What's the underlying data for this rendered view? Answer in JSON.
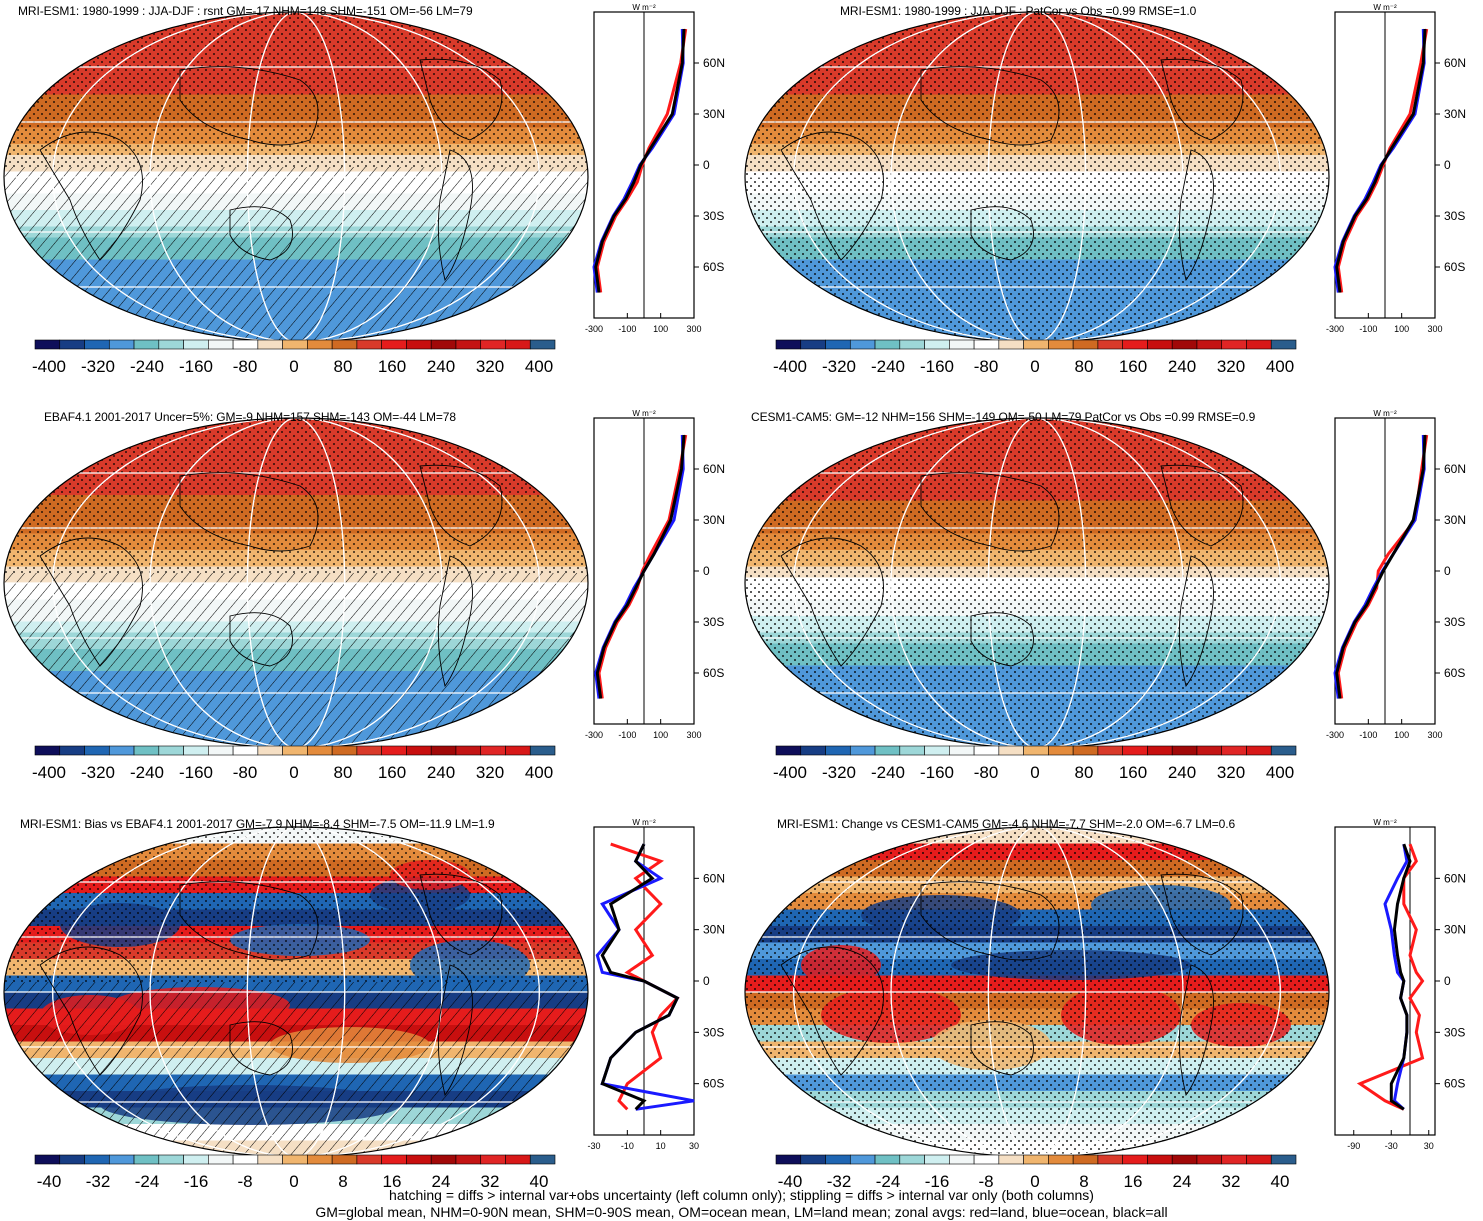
{
  "panels": [
    {
      "id": "p1",
      "title": "MRI-ESM1: 1980-1999 : JJA-DJF : rsnt GM=-17 NHM=148 SHM=-151 OM=-56 LM=79",
      "field": "clim",
      "overlay": "hatch",
      "colorbar": [
        "-400",
        "-320",
        "-240",
        "-160",
        "-80",
        "0",
        "80",
        "160",
        "240",
        "320",
        "400"
      ],
      "zonal_ticks": [
        "-300",
        "-100",
        "100",
        "300"
      ],
      "zonal_xlim": [
        -300,
        300
      ]
    },
    {
      "id": "p2",
      "title": "MRI-ESM1: 1980-1999 : JJA-DJF : PatCor vs Obs =0.99 RMSE=1.0",
      "field": "clim",
      "overlay": "stipple",
      "colorbar": [
        "-400",
        "-320",
        "-240",
        "-160",
        "-80",
        "0",
        "80",
        "160",
        "240",
        "320",
        "400"
      ],
      "zonal_ticks": [
        "-300",
        "-100",
        "100",
        "300"
      ],
      "zonal_xlim": [
        -300,
        300
      ]
    },
    {
      "id": "p3",
      "title": "EBAF4.1 2001-2017 Uncer=5%: GM=-9 NHM=157 SHM=-143 OM=-44 LM=78",
      "field": "clim",
      "overlay": "hatch",
      "colorbar": [
        "-400",
        "-320",
        "-240",
        "-160",
        "-80",
        "0",
        "80",
        "160",
        "240",
        "320",
        "400"
      ],
      "zonal_ticks": [
        "-300",
        "-100",
        "100",
        "300"
      ],
      "zonal_xlim": [
        -300,
        300
      ]
    },
    {
      "id": "p4",
      "title": "CESM1-CAM5: GM=-12 NHM=156 SHM=-149 OM=-50 LM=79 PatCor vs Obs =0.99 RMSE=0.9",
      "field": "clim",
      "overlay": "stipple",
      "colorbar": [
        "-400",
        "-320",
        "-240",
        "-160",
        "-80",
        "0",
        "80",
        "160",
        "240",
        "320",
        "400"
      ],
      "zonal_ticks": [
        "-300",
        "-100",
        "100",
        "300"
      ],
      "zonal_xlim": [
        -300,
        300
      ]
    },
    {
      "id": "p5",
      "title": "MRI-ESM1: Bias vs EBAF4.1 2001-2017 GM=-7.9 NHM=-8.4 SHM=-7.5 OM=-11.9 LM=1.9",
      "field": "bias",
      "overlay": "hatch",
      "colorbar": [
        "-40",
        "-32",
        "-24",
        "-16",
        "-8",
        "0",
        "8",
        "16",
        "24",
        "32",
        "40"
      ],
      "zonal_ticks": [
        "-30",
        "-10",
        "10",
        "30"
      ],
      "zonal_xlim": [
        -30,
        30
      ]
    },
    {
      "id": "p6",
      "title": "MRI-ESM1: Change vs CESM1-CAM5 GM=-4.6 NHM=-7.7 SHM=-2.0 OM=-6.7 LM=0.6",
      "field": "change",
      "overlay": "stipple",
      "colorbar": [
        "-40",
        "-32",
        "-24",
        "-16",
        "-8",
        "0",
        "8",
        "16",
        "24",
        "32",
        "40"
      ],
      "zonal_ticks": [
        "-90",
        "-30",
        "30"
      ],
      "zonal_xlim": [
        -120,
        40
      ]
    }
  ],
  "lat_labels": [
    "60N",
    "30N",
    "0",
    "30S",
    "60S"
  ],
  "unit": "W m⁻²",
  "colormap": [
    "#0e0e5a",
    "#173d84",
    "#1f66b3",
    "#4f98da",
    "#6fc0c4",
    "#9dd7d8",
    "#cfeff0",
    "#f2f7f7",
    "#ffffff",
    "#f5dfc4",
    "#f0b56e",
    "#e38b3c",
    "#cf6a22",
    "#d93a2a",
    "#e51c1c",
    "#c80f0f",
    "#a10808",
    "#c41414",
    "#e02525",
    "#d81818",
    "#2a5d8c"
  ],
  "footer": {
    "line1": "hatching = diffs > internal var+obs uncertainty (left column only); stippling = diffs > internal var only (both columns)",
    "line2": "GM=global mean, NHM=0-90N mean, SHM=0-90S mean, OM=ocean mean, LM=land mean; zonal avgs: red=land, blue=ocean, black=all"
  },
  "chart_data": [
    {
      "type": "heatmap",
      "title": "MRI-ESM1: 1980-1999 : JJA-DJF : rsnt GM=-17 NHM=148 SHM=-151 OM=-56 LM=79",
      "colorbar_range": [
        -400,
        400
      ],
      "zonal_mean": {
        "xlabel": "W m-2",
        "xlim": [
          -300,
          300
        ],
        "lat": [
          80,
          60,
          30,
          10,
          0,
          -10,
          -20,
          -30,
          -45,
          -60,
          -75
        ],
        "all": [
          240,
          230,
          170,
          40,
          -20,
          -60,
          -110,
          -180,
          -250,
          -290,
          -270
        ],
        "land": [
          250,
          220,
          140,
          30,
          -10,
          -40,
          -100,
          -170,
          -240,
          -280,
          -260
        ],
        "ocean": [
          230,
          235,
          180,
          50,
          -25,
          -70,
          -120,
          -185,
          -255,
          -300,
          -280
        ]
      }
    },
    {
      "type": "heatmap",
      "title": "MRI-ESM1: 1980-1999 : JJA-DJF : PatCor vs Obs =0.99 RMSE=1.0",
      "colorbar_range": [
        -400,
        400
      ],
      "zonal_mean": {
        "xlabel": "W m-2",
        "xlim": [
          -300,
          300
        ],
        "lat": [
          80,
          60,
          30,
          10,
          0,
          -10,
          -20,
          -30,
          -45,
          -60,
          -75
        ],
        "all": [
          240,
          230,
          170,
          40,
          -20,
          -60,
          -110,
          -180,
          -250,
          -290,
          -270
        ],
        "land": [
          250,
          215,
          150,
          30,
          -10,
          -50,
          -100,
          -170,
          -240,
          -280,
          -260
        ],
        "ocean": [
          230,
          235,
          180,
          50,
          -25,
          -70,
          -120,
          -185,
          -255,
          -300,
          -280
        ]
      }
    },
    {
      "type": "heatmap",
      "title": "EBAF4.1 2001-2017 Uncer=5%: GM=-9 NHM=157 SHM=-143 OM=-44 LM=78",
      "colorbar_range": [
        -400,
        400
      ],
      "zonal_mean": {
        "xlabel": "W m-2",
        "xlim": [
          -300,
          300
        ],
        "lat": [
          80,
          60,
          30,
          10,
          0,
          -10,
          -20,
          -30,
          -45,
          -60,
          -75
        ],
        "all": [
          240,
          225,
          160,
          60,
          0,
          -50,
          -100,
          -170,
          -240,
          -280,
          -260
        ],
        "land": [
          250,
          215,
          150,
          40,
          -10,
          -40,
          -90,
          -160,
          -230,
          -270,
          -250
        ],
        "ocean": [
          230,
          235,
          180,
          60,
          0,
          -60,
          -110,
          -175,
          -245,
          -290,
          -270
        ]
      }
    },
    {
      "type": "heatmap",
      "title": "CESM1-CAM5: GM=-12 NHM=156 SHM=-149 OM=-50 LM=79 PatCor vs Obs =0.99 RMSE=0.9",
      "colorbar_range": [
        -400,
        400
      ],
      "zonal_mean": {
        "xlabel": "W m-2",
        "xlim": [
          -300,
          300
        ],
        "lat": [
          80,
          60,
          30,
          10,
          0,
          -10,
          -20,
          -30,
          -45,
          -60,
          -75
        ],
        "all": [
          240,
          230,
          170,
          50,
          -10,
          -60,
          -110,
          -180,
          -250,
          -290,
          -270
        ],
        "land": [
          250,
          220,
          180,
          20,
          -40,
          -50,
          -100,
          -170,
          -240,
          -280,
          -260
        ],
        "ocean": [
          230,
          235,
          180,
          50,
          -15,
          -70,
          -120,
          -185,
          -255,
          -300,
          -280
        ]
      }
    },
    {
      "type": "heatmap",
      "title": "MRI-ESM1: Bias vs EBAF4.1 2001-2017 GM=-7.9 NHM=-8.4 SHM=-7.5 OM=-11.9 LM=1.9",
      "colorbar_range": [
        -40,
        40
      ],
      "zonal_mean": {
        "xlabel": "W m-2",
        "xlim": [
          -30,
          30
        ],
        "lat": [
          80,
          70,
          60,
          45,
          30,
          15,
          5,
          0,
          -10,
          -20,
          -30,
          -45,
          -60,
          -70,
          -75
        ],
        "all": [
          0,
          -5,
          5,
          -20,
          -15,
          -25,
          -20,
          0,
          20,
          15,
          -5,
          -20,
          -25,
          0,
          -5
        ],
        "land": [
          -20,
          10,
          -5,
          10,
          -5,
          5,
          -10,
          0,
          20,
          10,
          5,
          10,
          -10,
          -15,
          -10
        ],
        "ocean": [
          0,
          -5,
          10,
          -25,
          -15,
          -28,
          -25,
          0,
          20,
          15,
          -5,
          -20,
          -25,
          30,
          -5
        ]
      }
    },
    {
      "type": "heatmap",
      "title": "MRI-ESM1: Change vs CESM1-CAM5 GM=-4.6 NHM=-7.7 SHM=-2.0 OM=-6.7 LM=0.6",
      "colorbar_range": [
        -40,
        40
      ],
      "zonal_mean": {
        "xlabel": "W m-2",
        "xlim": [
          -120,
          40
        ],
        "lat": [
          80,
          70,
          60,
          45,
          30,
          15,
          5,
          0,
          -10,
          -20,
          -30,
          -45,
          -60,
          -70,
          -75
        ],
        "all": [
          -10,
          0,
          -10,
          -20,
          -25,
          -20,
          -15,
          -10,
          -15,
          -5,
          -5,
          -10,
          -30,
          -30,
          -10
        ],
        "land": [
          0,
          10,
          -10,
          -10,
          10,
          0,
          10,
          20,
          0,
          15,
          10,
          20,
          -80,
          -40,
          -10
        ],
        "ocean": [
          -10,
          -5,
          -20,
          -40,
          -30,
          -25,
          -20,
          -10,
          -15,
          -5,
          -5,
          -10,
          -20,
          -25,
          -10
        ]
      }
    }
  ]
}
